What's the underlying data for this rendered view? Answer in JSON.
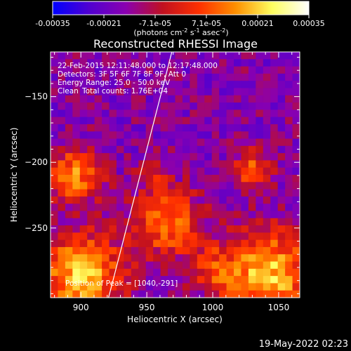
{
  "chart_data": {
    "type": "heatmap",
    "title": "Reconstructed RHESSI Image",
    "xlabel": "Heliocentric X (arcsec)",
    "ylabel": "Heliocentric Y (arcsec)",
    "x_ticks": [
      900,
      950,
      1000,
      1050
    ],
    "y_ticks": [
      -150,
      -200,
      -250
    ],
    "xlim": [
      877,
      1066
    ],
    "ylim": [
      -303,
      -116
    ],
    "colorbar": {
      "ticks": [
        "-0.00035",
        "-0.00021",
        "-7.1e-05",
        "7.1e-05",
        "0.00021",
        "0.00035"
      ],
      "min": -0.00035,
      "max": 0.00035,
      "unit_label": "(photons cm",
      "unit_sup1": "-2",
      "unit_mid": " s",
      "unit_sup2": "-1",
      "unit_end": " asec",
      "unit_sup3": "-2",
      "unit_close": ")"
    },
    "annotations": {
      "time_range": "22-Feb-2015 12:11:48.000 to 12:17:48.000",
      "detectors": "Detectors: 3F 5F 6F 7F 8F 9F, Att 0",
      "energy": "Energy Range: 25.0 - 50.0 keV",
      "clean": "Clean",
      "counts": "Total counts: 1.76E+04",
      "peak": "Position of Peak = [1040,-291]"
    },
    "limb_line": {
      "x": [
        921,
        969
      ],
      "y": [
        -303,
        -116
      ]
    },
    "grid": false,
    "colormap": [
      "#0000ff",
      "#5000d0",
      "#8a00b0",
      "#c01020",
      "#ff3000",
      "#ff9000",
      "#ffff60",
      "#ffffff"
    ],
    "emission_sources": [
      {
        "x": 1042,
        "y": -286,
        "sigma": 24,
        "amp": 1.05
      },
      {
        "x": 900,
        "y": -285,
        "sigma": 22,
        "amp": 1.05
      },
      {
        "x": 895,
        "y": -210,
        "sigma": 14,
        "amp": 0.85
      },
      {
        "x": 965,
        "y": -245,
        "sigma": 18,
        "amp": 0.8
      },
      {
        "x": 1030,
        "y": -205,
        "sigma": 10,
        "amp": 0.7
      },
      {
        "x": 1000,
        "y": -280,
        "sigma": 12,
        "amp": 0.45
      },
      {
        "x": 955,
        "y": -205,
        "sigma": 8,
        "amp": 0.35
      }
    ],
    "background_level": -0.45
  },
  "footer": {
    "timestamp": "19-May-2022 02:23"
  }
}
